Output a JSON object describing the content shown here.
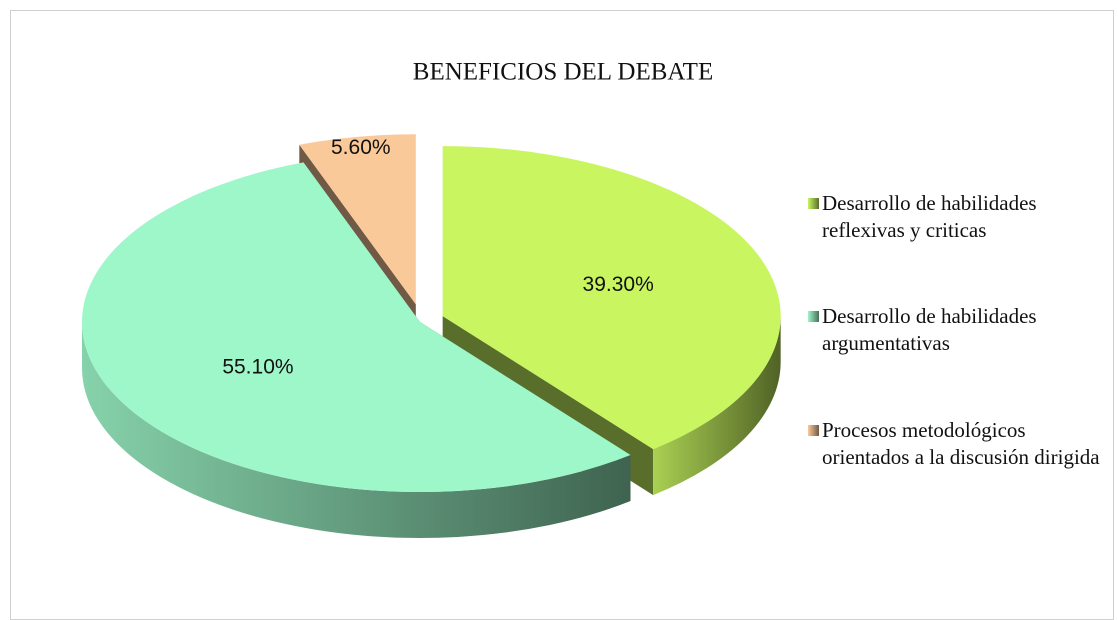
{
  "chart_data": {
    "type": "pie",
    "title": "BENEFICIOS DEL DEBATE",
    "categories": [
      "Desarrollo de habilidades reflexivas y criticas",
      "Desarrollo de habilidades argumentativas",
      "Procesos metodológicos orientados a la discusión dirigida"
    ],
    "values": [
      39.3,
      55.1,
      5.6
    ],
    "value_labels": [
      "39.30%",
      "55.10%",
      "5.60%"
    ],
    "colors": [
      "#c8f560",
      "#9ef7c9",
      "#fac99a"
    ],
    "legend": "right"
  }
}
